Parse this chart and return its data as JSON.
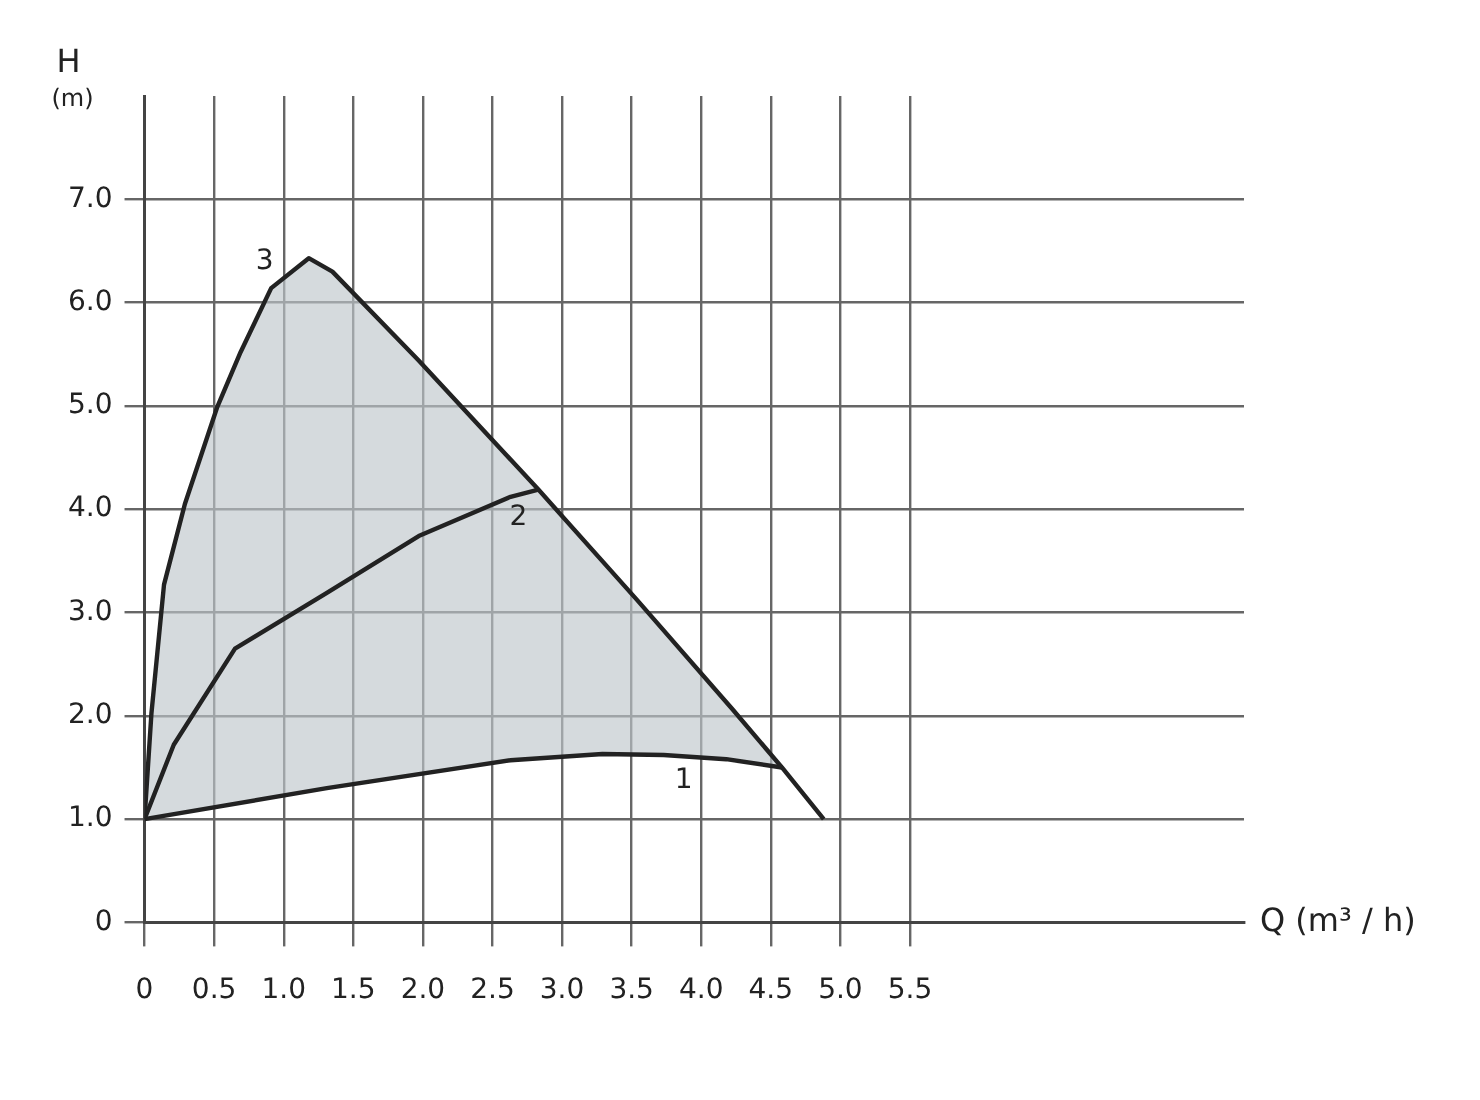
{
  "chart_data": {
    "type": "line",
    "xlabel": "Q (m³ / h)",
    "ylabel": "H (m)",
    "xlim": [
      0,
      7.9
    ],
    "xticks": [
      {
        "value": 0,
        "label": "0"
      },
      0.5,
      {
        "value": 1,
        "label": "1.0"
      },
      1.5,
      {
        "value": 2,
        "label": "2.0"
      },
      2.5,
      {
        "value": 3,
        "label": "3.0"
      },
      3.5,
      {
        "value": 4,
        "label": "4.0"
      },
      4.5,
      {
        "value": 5,
        "label": "5.0"
      },
      5.5
    ],
    "ylim": [
      0,
      8
    ],
    "yticks": [
      {
        "value": 0,
        "label": "0"
      },
      {
        "value": 1,
        "label": "1.0"
      },
      {
        "value": 2,
        "label": "2.0"
      },
      {
        "value": 3,
        "label": "3.0"
      },
      {
        "value": 4,
        "label": "4.0"
      },
      {
        "value": 5,
        "label": "5.0"
      },
      {
        "value": 6,
        "label": "6.0"
      },
      {
        "value": 7,
        "label": "7.0"
      }
    ],
    "grid": true,
    "marker": "none",
    "line_style": "solid",
    "series": [
      {
        "name": "3",
        "color": "#222222",
        "lower": [
          1.0,
          1.01,
          1.03,
          1.06,
          1.11,
          1.15,
          1.2,
          1.26,
          1.3,
          1.43,
          1.59,
          1.62,
          1.58,
          1.5,
          null
        ],
        "upper": [
          1.0,
          2.03,
          3.27,
          4.05,
          4.98,
          5.52,
          6.14,
          6.43,
          6.3,
          5.44,
          4.19,
          3.12,
          2.07,
          1.5,
          null
        ],
        "x": [
          0,
          0.05,
          0.14,
          0.29,
          0.52,
          0.69,
          0.91,
          1.18,
          1.35,
          1.97,
          2.83,
          3.54,
          4.22,
          4.58,
          4.88
        ],
        "values": [
          1.0,
          2.03,
          3.27,
          4.05,
          4.98,
          5.52,
          6.14,
          6.43,
          6.3,
          5.44,
          4.19,
          3.12,
          2.07,
          1.5,
          1.0
        ]
      },
      {
        "name": "2",
        "color": "#222222",
        "x": [
          0,
          0.21,
          0.65,
          1.31,
          1.97,
          2.63,
          2.83
        ],
        "values": [
          1.0,
          1.72,
          2.65,
          3.19,
          3.74,
          4.12,
          4.19
        ]
      },
      {
        "name": "1",
        "color": "#222222",
        "x": [
          0,
          1.31,
          2.63,
          3.29,
          3.73,
          4.18,
          4.58
        ],
        "values": [
          1.0,
          1.3,
          1.57,
          1.63,
          1.62,
          1.58,
          1.5
        ]
      }
    ]
  }
}
